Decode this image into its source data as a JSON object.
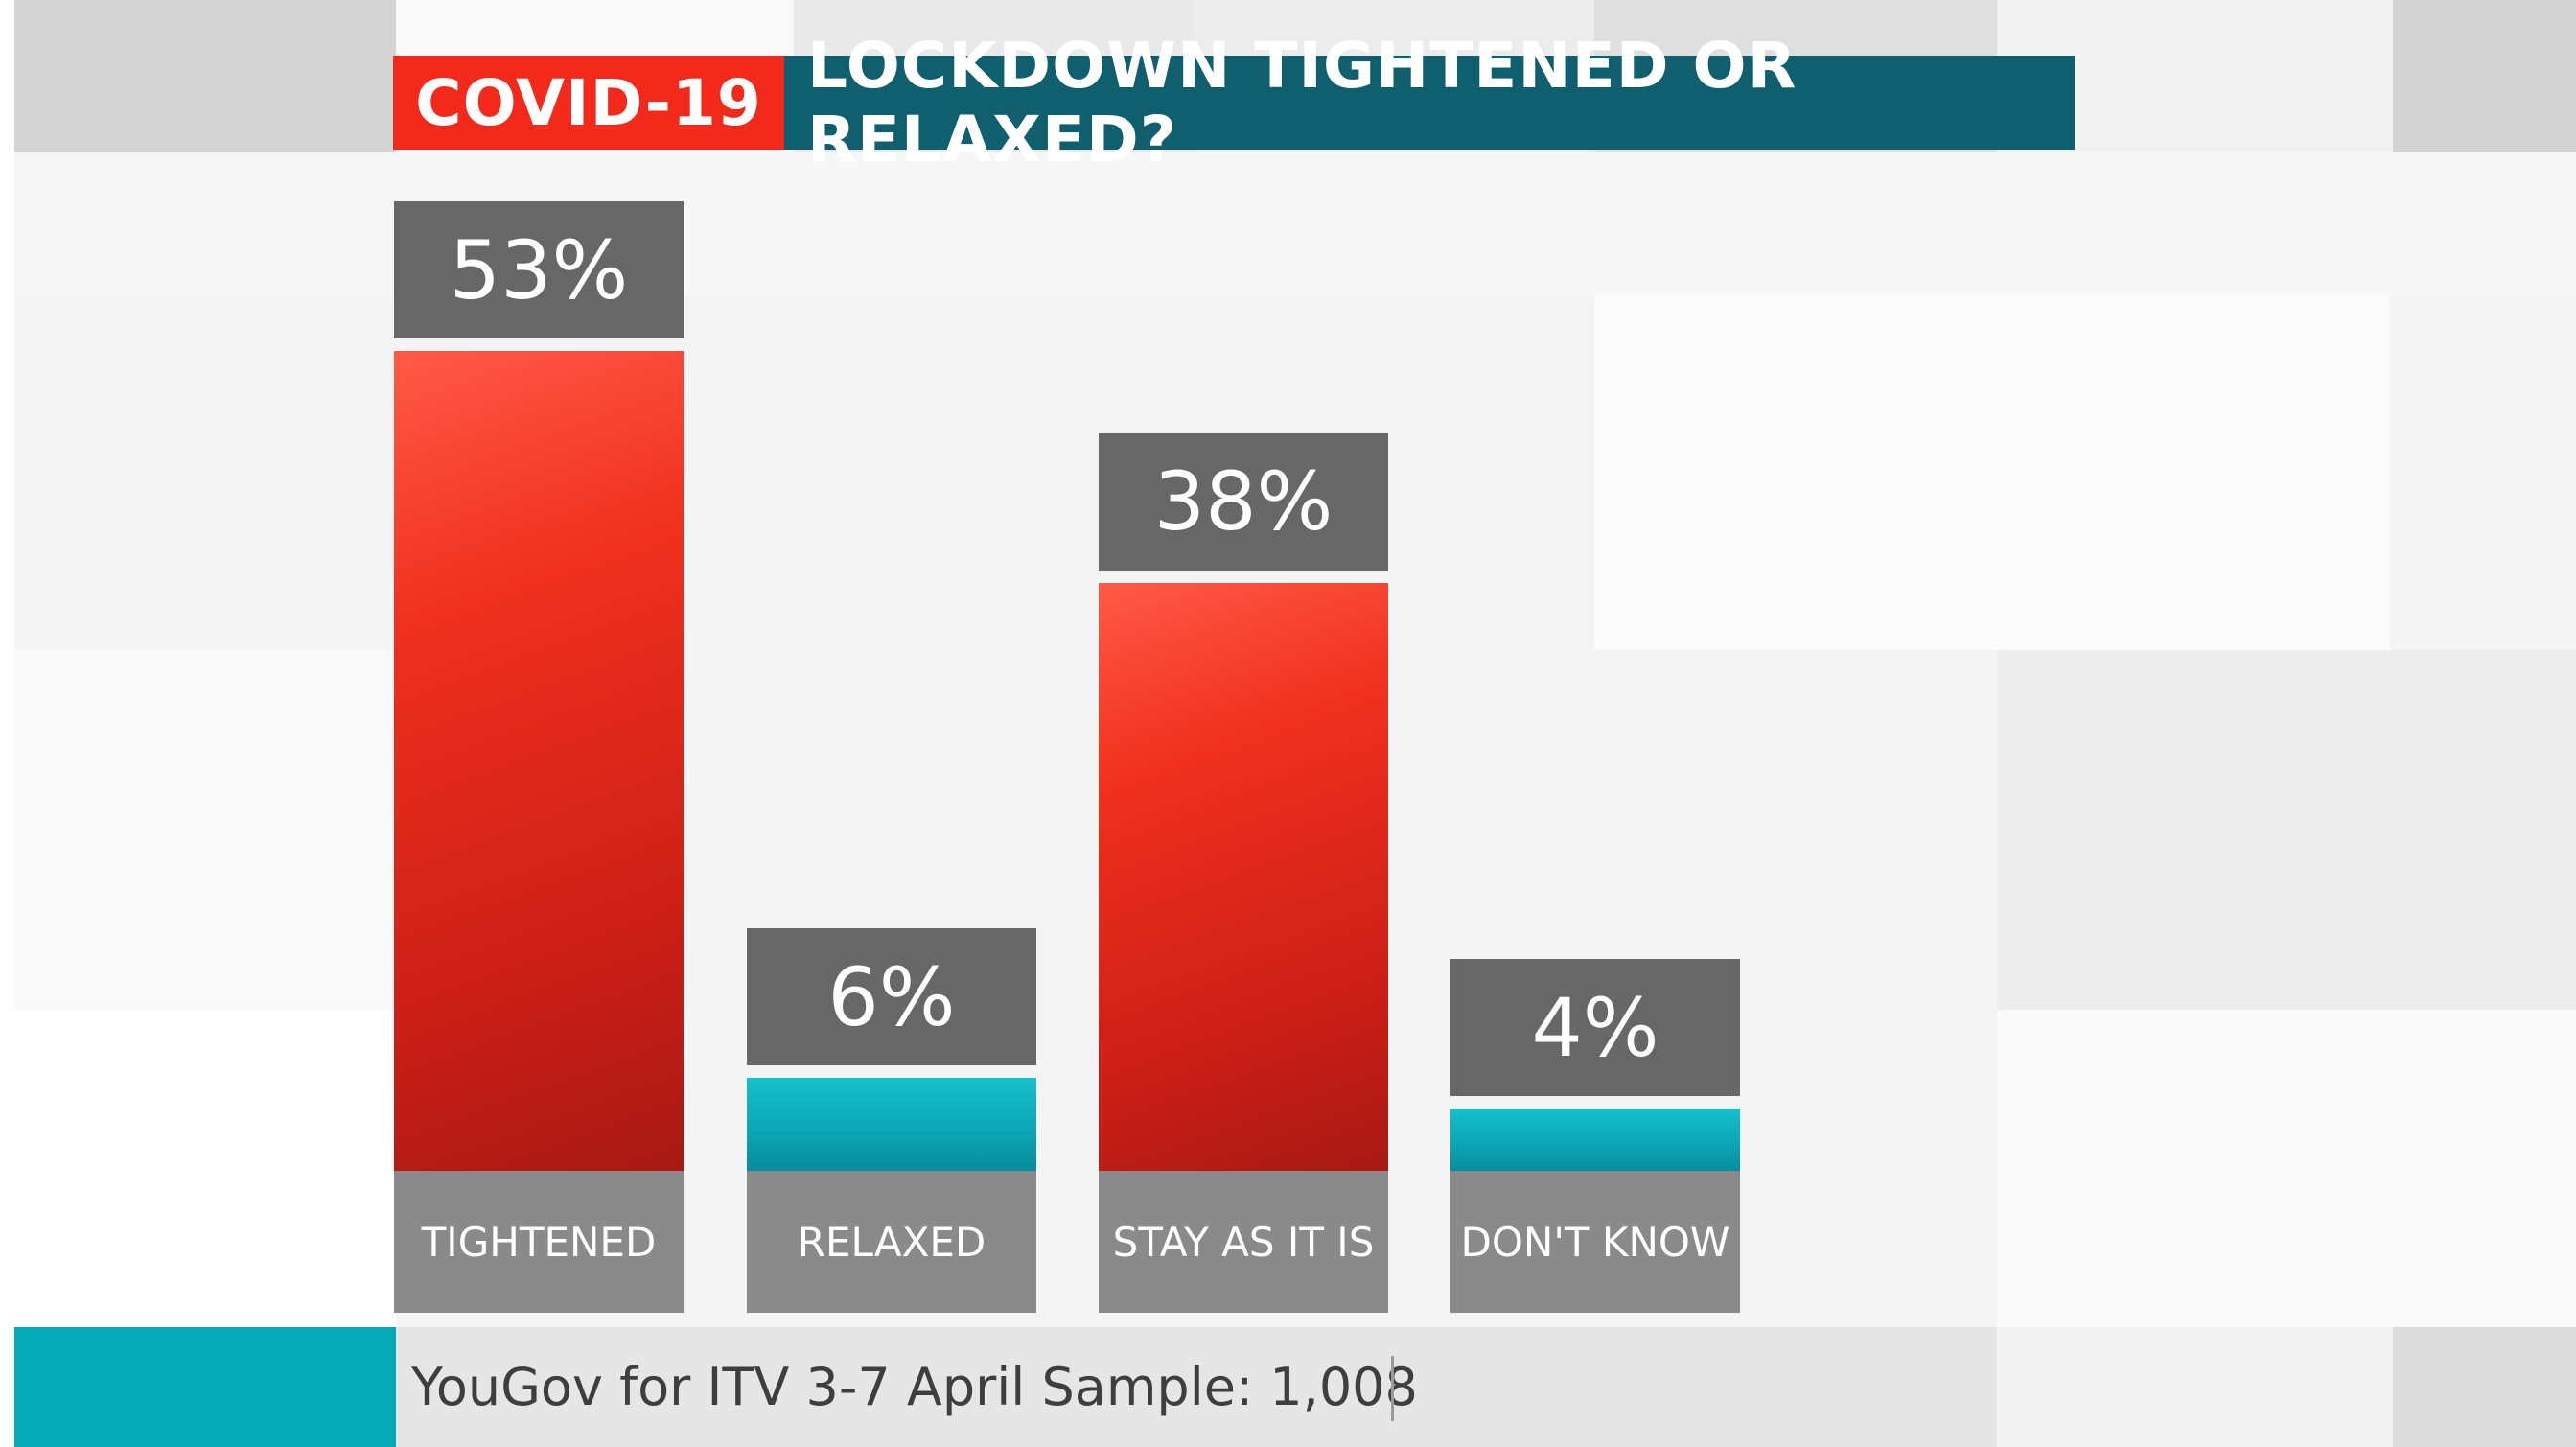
{
  "header": {
    "tag": "COVID-19",
    "title": "LOCKDOWN TIGHTENED OR RELAXED?"
  },
  "chart_data": {
    "type": "bar",
    "title": "LOCKDOWN TIGHTENED OR RELAXED?",
    "categories": [
      "TIGHTENED",
      "RELAXED",
      "STAY AS IT IS",
      "DON'T KNOW"
    ],
    "values": [
      53,
      6,
      38,
      4
    ],
    "value_labels": [
      "53%",
      "6%",
      "38%",
      "4%"
    ],
    "bar_colors": [
      "#e8281c",
      "#0aa8b6",
      "#e8281c",
      "#0aa8b6"
    ],
    "xlabel": "",
    "ylabel": "",
    "ylim": [
      0,
      53
    ],
    "grid": false
  },
  "footer": {
    "source": "YouGov for ITV 3-7 April Sample: 1,008"
  },
  "colors": {
    "accent_red": "#f2291b",
    "title_teal": "#0f5f6e",
    "footer_teal": "#06aab7",
    "label_grey": "#676767"
  }
}
